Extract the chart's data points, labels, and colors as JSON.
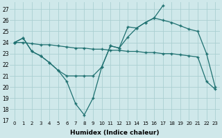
{
  "background_color": "#cfe8ea",
  "grid_color": "#aacfd2",
  "line_color": "#1e7070",
  "xlabel": "Humidex (Indice chaleur)",
  "xlim": [
    -0.5,
    23.5
  ],
  "ylim": [
    17,
    27.6
  ],
  "yticks": [
    17,
    18,
    19,
    20,
    21,
    22,
    23,
    24,
    25,
    26,
    27
  ],
  "xticks": [
    0,
    1,
    2,
    3,
    4,
    5,
    6,
    7,
    8,
    9,
    10,
    11,
    12,
    13,
    14,
    15,
    16,
    17,
    18,
    19,
    20,
    21,
    22,
    23
  ],
  "lineA_x": [
    0,
    1,
    2,
    3,
    4,
    5,
    6,
    7,
    8,
    9,
    10,
    11,
    12,
    13,
    14,
    15,
    16,
    17
  ],
  "lineA_y": [
    24.0,
    24.4,
    23.2,
    22.8,
    22.2,
    21.5,
    20.5,
    18.5,
    17.5,
    19.0,
    21.8,
    23.7,
    23.5,
    25.4,
    25.3,
    25.8,
    26.2,
    27.3
  ],
  "lineB_x": [
    0,
    1,
    2,
    3,
    4,
    5,
    6,
    7,
    8,
    9,
    10,
    11,
    12,
    13,
    14,
    15,
    16,
    17,
    18,
    19,
    20,
    21,
    22,
    23
  ],
  "lineB_y": [
    24.0,
    24.4,
    23.2,
    22.8,
    22.2,
    21.5,
    21.0,
    21.0,
    21.0,
    21.0,
    21.8,
    23.7,
    23.5,
    24.5,
    25.3,
    25.8,
    26.2,
    26.0,
    25.8,
    25.5,
    25.2,
    25.0,
    23.0,
    20.0
  ],
  "lineC_x": [
    0,
    1,
    2,
    3,
    4,
    5,
    6,
    7,
    8,
    9,
    10,
    11,
    12,
    13,
    14,
    15,
    16,
    17,
    18,
    19,
    20,
    21,
    22,
    23
  ],
  "lineC_y": [
    24.0,
    24.0,
    23.9,
    23.8,
    23.8,
    23.7,
    23.6,
    23.5,
    23.5,
    23.4,
    23.4,
    23.3,
    23.3,
    23.2,
    23.2,
    23.1,
    23.1,
    23.0,
    23.0,
    22.9,
    22.8,
    22.7,
    20.5,
    19.8
  ]
}
